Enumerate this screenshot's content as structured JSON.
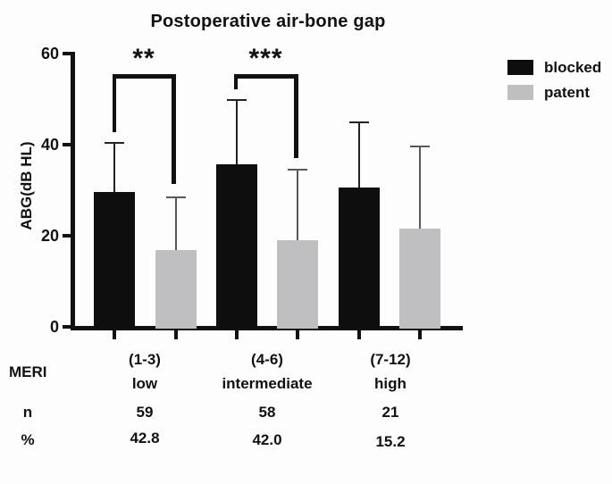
{
  "chart_data": {
    "type": "bar",
    "title": "Postoperative air-bone gap",
    "ylabel": "ABG(dB HL)",
    "ylim": [
      0,
      60
    ],
    "yticks": [
      0,
      20,
      40,
      60
    ],
    "grid": false,
    "legend_position": "right",
    "categories": [
      "(1-3) low",
      "(4-6) intermediate",
      "(7-12) high"
    ],
    "series": [
      {
        "name": "blocked",
        "color": "#0e0e0e",
        "error_color": "#232323",
        "values": [
          29.6,
          35.5,
          30.4
        ],
        "sd_upper": [
          10.6,
          14.2,
          14.5
        ]
      },
      {
        "name": "patent",
        "color": "#bfbfc1",
        "error_color": "#58585a",
        "values": [
          16.7,
          19.0,
          21.4
        ],
        "sd_upper": [
          11.7,
          15.4,
          18.2
        ]
      }
    ],
    "significance": [
      {
        "label": "**",
        "group": "(1-3) low",
        "comparison": "blocked vs patent"
      },
      {
        "label": "***",
        "group": "(4-6) intermediate",
        "comparison": "blocked vs patent"
      }
    ]
  },
  "table": {
    "meri_label": "MERI",
    "n_label": "n",
    "pct_label": "%",
    "groups": [
      {
        "range": "(1-3)",
        "level": "low",
        "n": "59",
        "pct": "42.8"
      },
      {
        "range": "(4-6)",
        "level": "intermediate",
        "n": "58",
        "pct": "42.0"
      },
      {
        "range": "(7-12)",
        "level": "high",
        "n": "21",
        "pct": "15.2"
      }
    ]
  },
  "colors": {
    "axis": "#111111",
    "text": "#111111",
    "background": "#fdfdfd"
  }
}
